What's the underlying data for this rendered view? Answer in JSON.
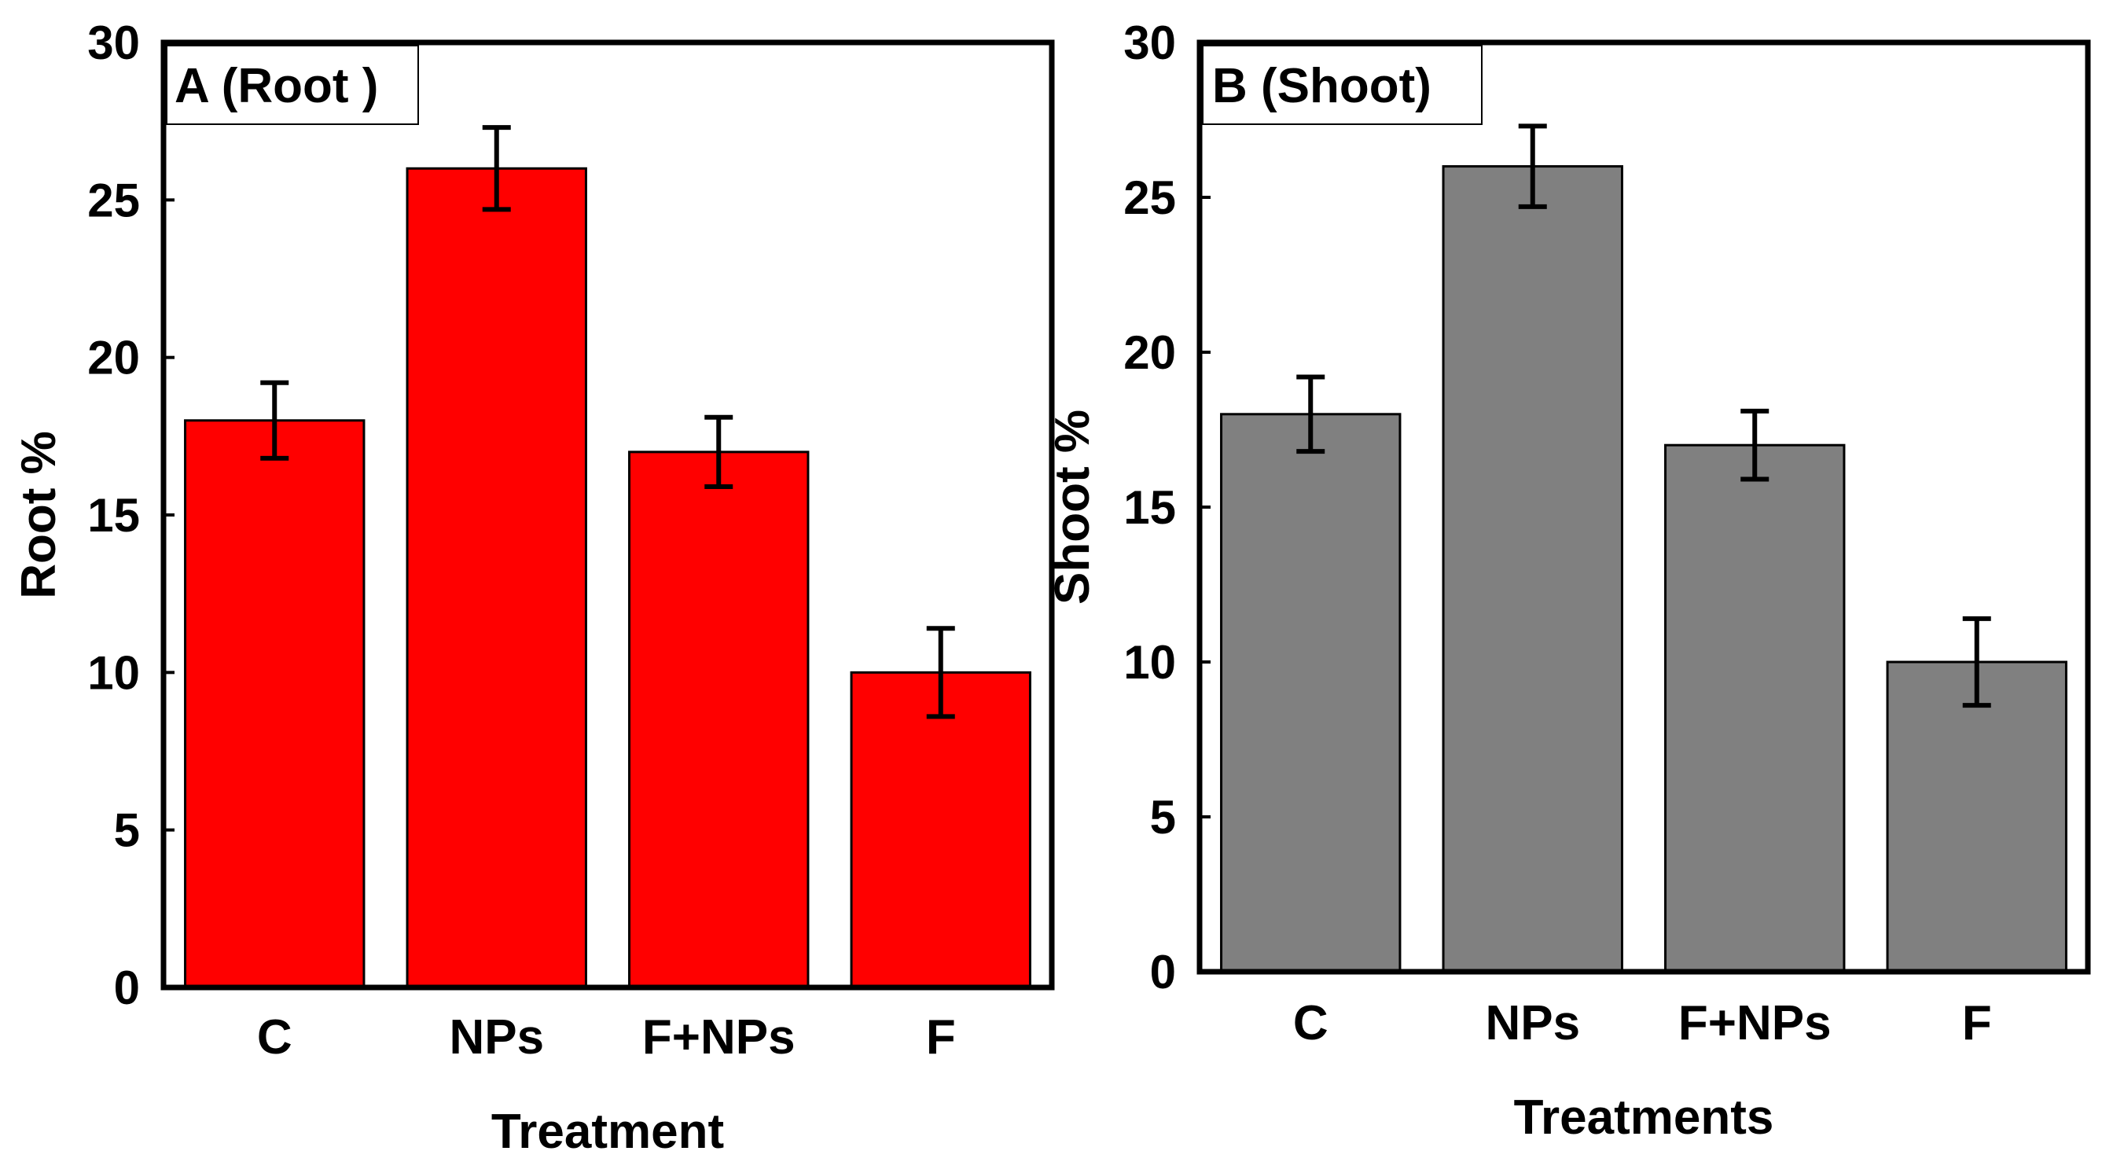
{
  "chart_data": [
    {
      "type": "bar",
      "panel_label": "A (Root )",
      "title": "",
      "xlabel": "Treatment",
      "ylabel": "Root %",
      "categories": [
        "C",
        "NPs",
        "F+NPs",
        "F"
      ],
      "values": [
        18,
        26,
        17,
        10
      ],
      "errors": [
        1.2,
        1.3,
        1.1,
        1.4
      ],
      "ylim": [
        0,
        30
      ],
      "yticks": [
        "0",
        "5",
        "10",
        "15",
        "20",
        "25",
        "30"
      ],
      "bar_color": "#ff0000",
      "grid": false
    },
    {
      "type": "bar",
      "panel_label": "B (Shoot)",
      "title": "",
      "xlabel": "Treatments",
      "ylabel": "Shoot %",
      "categories": [
        "C",
        "NPs",
        "F+NPs",
        "F"
      ],
      "values": [
        18,
        26,
        17,
        10
      ],
      "errors": [
        1.2,
        1.3,
        1.1,
        1.4
      ],
      "ylim": [
        0,
        30
      ],
      "yticks": [
        "0",
        "5",
        "10",
        "15",
        "20",
        "25",
        "30"
      ],
      "bar_color": "#808080",
      "grid": false
    }
  ]
}
